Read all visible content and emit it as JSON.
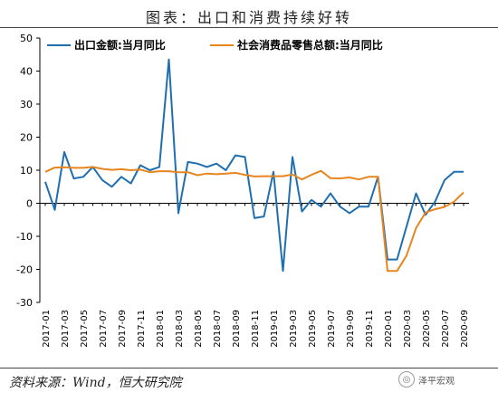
{
  "title": "图表：出口和消费持续好转",
  "source": "资料来源：Wind，恒大研究院",
  "watermark": "泽平宏观",
  "colors": {
    "export": "#1f6fb0",
    "retail": "#e8851f",
    "axis": "#000000"
  },
  "chart_data": {
    "type": "line",
    "ylim": [
      -30,
      50
    ],
    "yticks": [
      -30,
      -20,
      -10,
      0,
      10,
      20,
      30,
      40,
      50
    ],
    "x_tick_labels": [
      "2017-01",
      "2017-03",
      "2017-05",
      "2017-07",
      "2017-09",
      "2017-11",
      "2018-01",
      "2018-03",
      "2018-05",
      "2018-07",
      "2018-09",
      "2018-11",
      "2019-01",
      "2019-03",
      "2019-05",
      "2019-07",
      "2019-09",
      "2019-11",
      "2020-01",
      "2020-03",
      "2020-05",
      "2020-07",
      "2020-09"
    ],
    "x": [
      "2017-01",
      "2017-02",
      "2017-03",
      "2017-04",
      "2017-05",
      "2017-06",
      "2017-07",
      "2017-08",
      "2017-09",
      "2017-10",
      "2017-11",
      "2017-12",
      "2018-01",
      "2018-02",
      "2018-03",
      "2018-04",
      "2018-05",
      "2018-06",
      "2018-07",
      "2018-08",
      "2018-09",
      "2018-10",
      "2018-11",
      "2018-12",
      "2019-01",
      "2019-02",
      "2019-03",
      "2019-04",
      "2019-05",
      "2019-06",
      "2019-07",
      "2019-08",
      "2019-09",
      "2019-10",
      "2019-11",
      "2019-12",
      "2020-01",
      "2020-02",
      "2020-03",
      "2020-04",
      "2020-05",
      "2020-06",
      "2020-07",
      "2020-08",
      "2020-09"
    ],
    "series": [
      {
        "name": "出口金额:当月同比",
        "values": [
          6.5,
          -2,
          15.5,
          7.5,
          8,
          11,
          7,
          5,
          8,
          6,
          11.5,
          10,
          11,
          43.5,
          -3,
          12.5,
          12,
          11,
          12,
          10,
          14.5,
          14,
          -4.5,
          -4,
          9.5,
          -20.5,
          14,
          -2.5,
          1,
          -1,
          3,
          -1,
          -3,
          -1,
          -1,
          8,
          -17,
          -17,
          -7,
          3,
          -3.5,
          0.5,
          7,
          9.5,
          9.5
        ]
      },
      {
        "name": "社会消费品零售总额:当月同比",
        "values": [
          9.5,
          10.8,
          10.9,
          10.7,
          10.7,
          11,
          10.4,
          10.1,
          10.3,
          10,
          10.2,
          9.4,
          9.7,
          9.7,
          9.4,
          9.4,
          8.5,
          9,
          8.8,
          9,
          9.2,
          8.6,
          8.1,
          8.2,
          8.2,
          8.2,
          8.7,
          7.2,
          8.6,
          9.8,
          7.6,
          7.5,
          7.8,
          7.2,
          8,
          8,
          -20.5,
          -20.5,
          -15.8,
          -7.5,
          -2.8,
          -1.8,
          -1.1,
          0.5,
          3.3
        ]
      }
    ]
  }
}
